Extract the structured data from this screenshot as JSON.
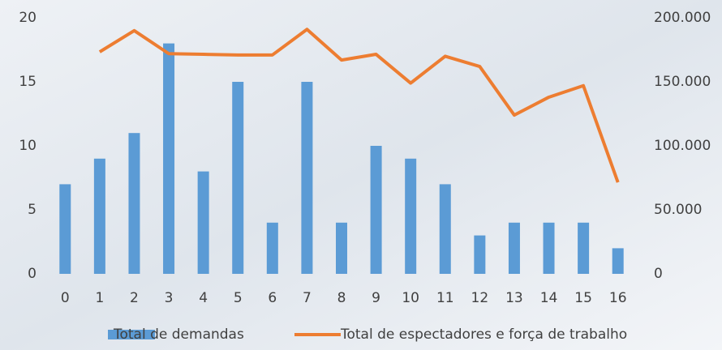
{
  "chart_data": {
    "type": "bar-line",
    "categories": [
      "0",
      "1",
      "2",
      "3",
      "4",
      "5",
      "6",
      "7",
      "8",
      "9",
      "10",
      "11",
      "12",
      "13",
      "14",
      "15",
      "16"
    ],
    "series": [
      {
        "name": "Total de demandas",
        "type": "bar",
        "color": "#5b9bd5",
        "values": [
          7,
          9,
          11,
          18,
          8,
          15,
          4,
          15,
          4,
          10,
          9,
          7,
          3,
          4,
          4,
          4,
          2
        ]
      },
      {
        "name": "Total de espectadores e força de trabalho",
        "type": "line",
        "axis": "y2",
        "color": "#ed7d31",
        "values": [
          null,
          173400,
          190000,
          172000,
          171500,
          171000,
          171000,
          191000,
          167000,
          171500,
          149000,
          170000,
          162000,
          124000,
          138000,
          147000,
          71500
        ]
      }
    ],
    "ylim": [
      0,
      20
    ],
    "yticks": [
      0,
      5,
      10,
      15,
      20
    ],
    "y2lim": [
      0,
      200000
    ],
    "y2ticks": [
      0,
      {
        "value": 50000,
        "label": "50.000"
      },
      {
        "value": 100000,
        "label": "100.000"
      },
      {
        "value": 150000,
        "label": "150.000"
      },
      {
        "value": 200000,
        "label": "200.000"
      }
    ],
    "legend": "bottom"
  }
}
